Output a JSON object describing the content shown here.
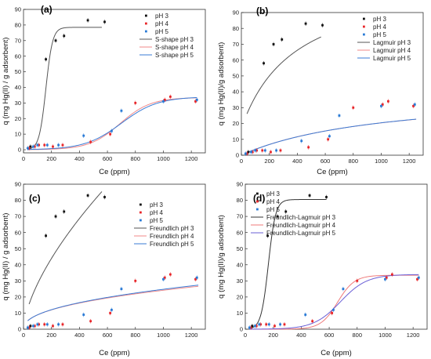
{
  "figure": {
    "colors": {
      "pH 3": "#111111",
      "pH 4": "#e8262a",
      "pH 5": "#2a7bd6"
    },
    "model_colors": {
      "pH 3": "#555555",
      "pH 4": "#f08a8a",
      "pH 5": "#3a7bd5"
    },
    "model_colors_d": {
      "pH 3": "#333333",
      "pH 4": "#ef7a7a",
      "pH 5": "#6a5fd6"
    }
  },
  "chart_data": [
    {
      "type": "scatter",
      "panel_label": "(a)",
      "xlabel": "Ce (ppm)",
      "ylabel": "q (mg Hg(II) / g adsorbent)",
      "xlim": [
        0,
        1300
      ],
      "ylim": [
        -2,
        90
      ],
      "xticks": [
        0,
        200,
        400,
        600,
        800,
        1000,
        1200
      ],
      "yticks": [
        0,
        10,
        20,
        30,
        40,
        50,
        60,
        70,
        80,
        90
      ],
      "legend_position": "upper-right",
      "series": [
        {
          "name": "pH 3",
          "kind": "points",
          "x": [
            50,
            160,
            230,
            290,
            460,
            580
          ],
          "y": [
            2,
            58,
            70,
            73,
            83,
            82
          ]
        },
        {
          "name": "pH 4",
          "kind": "points",
          "x": [
            40,
            80,
            110,
            150,
            210,
            280,
            480,
            620,
            800,
            1010,
            1050,
            1230
          ],
          "y": [
            1,
            2,
            3,
            3,
            2,
            3,
            5,
            10,
            30,
            32,
            34,
            31
          ]
        },
        {
          "name": "pH 5",
          "kind": "points",
          "x": [
            30,
            70,
            100,
            170,
            250,
            430,
            630,
            700,
            1000,
            1240
          ],
          "y": [
            1,
            2,
            3,
            3,
            3,
            9,
            12,
            25,
            31,
            32
          ]
        },
        {
          "name": "S-shape pH 3",
          "kind": "model",
          "model": "sigmoid",
          "qmax": 78.5,
          "x0": 160,
          "k": 24,
          "xrange": [
            40,
            560
          ]
        },
        {
          "name": "S-shape pH 4",
          "kind": "model",
          "model": "sigmoid",
          "qmax": 33.5,
          "x0": 690,
          "k": 110,
          "xrange": [
            30,
            1240
          ]
        },
        {
          "name": "S-shape pH 5",
          "kind": "model",
          "model": "sigmoid",
          "qmax": 34,
          "x0": 700,
          "k": 130,
          "xrange": [
            30,
            1240
          ]
        }
      ]
    },
    {
      "type": "scatter",
      "panel_label": "(b)",
      "xlabel": "Ce (ppm)",
      "ylabel": "q (mg Hg(II)/g adsorbent)",
      "xlim": [
        0,
        1300
      ],
      "ylim": [
        0,
        90
      ],
      "xticks": [
        0,
        200,
        400,
        600,
        800,
        1000,
        1200
      ],
      "yticks": [
        0,
        10,
        20,
        30,
        40,
        50,
        60,
        70,
        80,
        90
      ],
      "legend_position": "upper-right",
      "series": [
        {
          "name": "pH 3",
          "kind": "points",
          "x": [
            50,
            160,
            230,
            290,
            460,
            580
          ],
          "y": [
            2,
            58,
            70,
            73,
            83,
            82
          ]
        },
        {
          "name": "pH 4",
          "kind": "points",
          "x": [
            40,
            80,
            110,
            150,
            210,
            280,
            480,
            620,
            800,
            1010,
            1050,
            1230
          ],
          "y": [
            1,
            2,
            3,
            3,
            2,
            3,
            5,
            10,
            30,
            32,
            34,
            31
          ]
        },
        {
          "name": "pH 5",
          "kind": "points",
          "x": [
            30,
            70,
            100,
            170,
            250,
            430,
            630,
            700,
            1000,
            1240
          ],
          "y": [
            1,
            2,
            3,
            3,
            3,
            9,
            12,
            25,
            31,
            32
          ]
        },
        {
          "name": "Lagmuir pH 3",
          "kind": "model",
          "model": "langmuir",
          "qmax": 96.5,
          "b": 0.0026,
          "offset": 17,
          "xrange": [
            40,
            570
          ]
        },
        {
          "name": "Lagmuir pH 4",
          "kind": "model",
          "model": "langmuir",
          "qmax": 41,
          "b": 0.00099,
          "offset": 0,
          "xrange": [
            30,
            1250
          ]
        },
        {
          "name": "Lagmuir pH 5",
          "kind": "model",
          "model": "langmuir",
          "qmax": 41.5,
          "b": 0.00097,
          "offset": 0,
          "xrange": [
            30,
            1250
          ]
        }
      ]
    },
    {
      "type": "scatter",
      "panel_label": "(c)",
      "xlabel": "Ce (ppm)",
      "ylabel": "q (mg Hg(II) / g adsorbent)",
      "xlim": [
        0,
        1300
      ],
      "ylim": [
        0,
        90
      ],
      "xticks": [
        0,
        200,
        400,
        600,
        800,
        1000,
        1200
      ],
      "yticks": [
        0,
        10,
        20,
        30,
        40,
        50,
        60,
        70,
        80,
        90
      ],
      "legend_position": "center-right",
      "series": [
        {
          "name": "pH 3",
          "kind": "points",
          "x": [
            50,
            160,
            230,
            290,
            460,
            580
          ],
          "y": [
            2,
            58,
            70,
            73,
            83,
            82
          ]
        },
        {
          "name": "pH 4",
          "kind": "points",
          "x": [
            40,
            80,
            110,
            150,
            210,
            280,
            480,
            620,
            800,
            1010,
            1050,
            1230
          ],
          "y": [
            1,
            2,
            3,
            3,
            2,
            3,
            5,
            10,
            30,
            32,
            34,
            31
          ]
        },
        {
          "name": "pH 5",
          "kind": "points",
          "x": [
            30,
            70,
            100,
            170,
            250,
            430,
            630,
            700,
            1000,
            1240
          ],
          "y": [
            1,
            2,
            3,
            3,
            3,
            9,
            12,
            25,
            31,
            32
          ]
        },
        {
          "name": "Freundlich pH 3",
          "kind": "model",
          "model": "freundlich",
          "kf": 1.44,
          "n": 1.55,
          "xrange": [
            40,
            560
          ]
        },
        {
          "name": "Freundlich pH 4",
          "kind": "model",
          "model": "freundlich",
          "kf": 1.2,
          "n": 2.3,
          "xrange": [
            30,
            1250
          ]
        },
        {
          "name": "Freundlich pH 5",
          "kind": "model",
          "model": "freundlich",
          "kf": 1.15,
          "n": 2.25,
          "xrange": [
            30,
            1250
          ]
        }
      ]
    },
    {
      "type": "scatter",
      "panel_label": "(d)",
      "xlabel": "Ce (ppm)",
      "ylabel": "q (mg Hg(II)/g adsorbent)",
      "xlim": [
        0,
        1300
      ],
      "ylim": [
        0,
        90
      ],
      "xticks": [
        0,
        200,
        400,
        600,
        800,
        1000,
        1200
      ],
      "yticks": [
        0,
        10,
        20,
        30,
        40,
        50,
        60,
        70,
        80,
        90
      ],
      "legend_position": "center-left",
      "series": [
        {
          "name": "pH 3",
          "kind": "points",
          "x": [
            50,
            160,
            230,
            290,
            460,
            580
          ],
          "y": [
            2,
            58,
            70,
            73,
            83,
            82
          ]
        },
        {
          "name": "pH 4",
          "kind": "points",
          "x": [
            40,
            80,
            110,
            150,
            210,
            280,
            480,
            620,
            800,
            1010,
            1050,
            1230
          ],
          "y": [
            1,
            2,
            3,
            3,
            2,
            3,
            5,
            10,
            30,
            32,
            34,
            31
          ]
        },
        {
          "name": "pH 5",
          "kind": "points",
          "x": [
            30,
            70,
            100,
            170,
            250,
            430,
            630,
            700,
            1000,
            1240
          ],
          "y": [
            1,
            2,
            3,
            3,
            3,
            9,
            12,
            25,
            31,
            32
          ]
        },
        {
          "name": "Freundlich-Lagmuir pH 3",
          "kind": "model",
          "model": "sigmoid",
          "qmax": 80.5,
          "x0": 165,
          "k": 26,
          "xrange": [
            40,
            580
          ]
        },
        {
          "name": "Freundlich-Lagmuir pH 4",
          "kind": "model",
          "model": "sigmoid",
          "qmax": 33.5,
          "x0": 660,
          "k": 60,
          "xrange": [
            30,
            1240
          ]
        },
        {
          "name": "Freundlich-Lagmuir pH 5",
          "kind": "model",
          "model": "sigmoid",
          "qmax": 34,
          "x0": 680,
          "k": 95,
          "xrange": [
            30,
            1240
          ]
        }
      ]
    }
  ]
}
